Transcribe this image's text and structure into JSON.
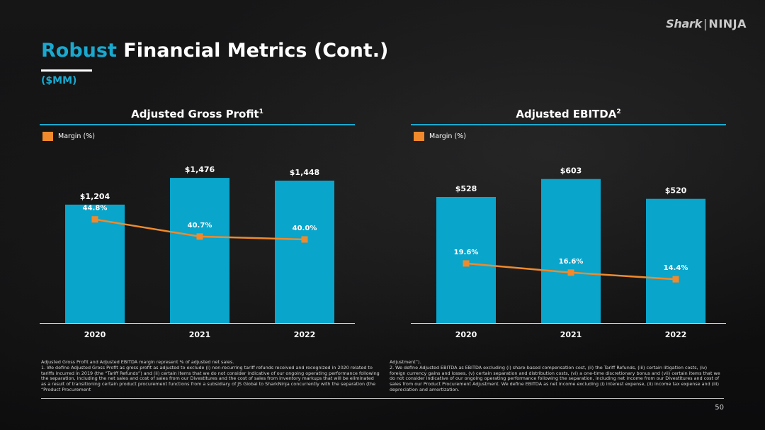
{
  "logo": {
    "brand_a": "Shark",
    "brand_b": "NINJA"
  },
  "title": {
    "accent": "Robust",
    "rest": " Financial Metrics (Cont.)"
  },
  "units": "($MM)",
  "chart_data": [
    {
      "type": "bar",
      "title": "Adjusted Gross Profit",
      "title_footnote": "1",
      "categories": [
        "2020",
        "2021",
        "2022"
      ],
      "values": [
        1204,
        1476,
        1448
      ],
      "value_labels": [
        "$1,204",
        "$1,476",
        "$1,448"
      ],
      "bar_color": "#0aa5cb",
      "ylim": [
        0,
        1700
      ],
      "line": {
        "name": "Margin (%)",
        "values": [
          44.8,
          40.7,
          40.0
        ],
        "labels": [
          "44.8%",
          "40.7%",
          "40.0%"
        ],
        "color": "#f08a2c",
        "ylim": [
          20,
          60
        ]
      }
    },
    {
      "type": "bar",
      "title": "Adjusted EBITDA",
      "title_footnote": "2",
      "categories": [
        "2020",
        "2021",
        "2022"
      ],
      "values": [
        528,
        603,
        520
      ],
      "value_labels": [
        "$528",
        "$603",
        "$520"
      ],
      "bar_color": "#0aa5cb",
      "ylim": [
        0,
        700
      ],
      "line": {
        "name": "Margin (%)",
        "values": [
          19.6,
          16.6,
          14.4
        ],
        "labels": [
          "19.6%",
          "16.6%",
          "14.4%"
        ],
        "color": "#f08a2c",
        "ylim": [
          0,
          55
        ]
      }
    }
  ],
  "footnotes": {
    "left": [
      "Adjusted Gross Profit and Adjusted EBITDA margin represent % of adjusted net sales.",
      "1.  We define Adjusted Gross Profit as gross profit as adjusted to exclude (i) non-recurring tariff refunds received and recognized in 2020 related to tariffs incurred in 2019 (the “Tariff Refunds”) and (ii) certain items that we do not consider indicative of our ongoing operating performance following the separation, including the net sales and cost of sales from our Divestitures and the cost of sales from inventory markups that will be eliminated as a result of transitioning certain product procurement functions from a subsidiary of JS Global to SharkNinja concurrently with the separation (the “Product Procurement"
    ],
    "right": [
      "Adjustment”).",
      "2.  We define Adjusted EBITDA as EBITDA excluding (i) share-based compensation cost, (ii) the Tariff Refunds, (iii) certain litigation costs, (iv) foreign currency gains and losses, (v) certain separation and distribution costs, (vi) a one-time discretionary bonus and (vii) certain items that we do not consider indicative of our ongoing operating performance following the separation, including net income from our Divestitures and cost of sales from our Product Procurement Adjustment. We define EBITDA as net income excluding (i) interest expense, (ii) income tax expense and (iii) depreciation and amortization."
    ]
  },
  "page_number": "50"
}
